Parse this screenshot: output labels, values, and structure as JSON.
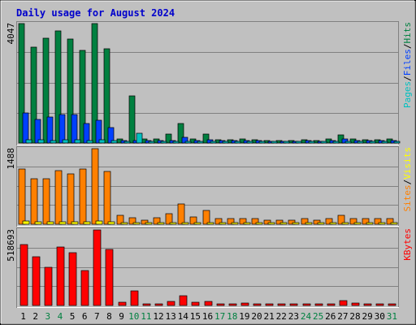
{
  "title": "Daily usage for August 2024",
  "colors": {
    "title": "#0000cc",
    "background": "#c0c0c0",
    "hits": "#008040",
    "files": "#0040ff",
    "pages": "#00c0c0",
    "visits": "#ffff00",
    "sites": "#ff8000",
    "kbytes": "#ff0000",
    "weekend_day": "#008040",
    "weekday_day": "#000000",
    "gridline": "#808080",
    "separator": "#000000"
  },
  "chart_data": {
    "type": "bar",
    "categories": [
      "1",
      "2",
      "3",
      "4",
      "5",
      "6",
      "7",
      "8",
      "9",
      "10",
      "11",
      "12",
      "13",
      "14",
      "15",
      "16",
      "17",
      "18",
      "19",
      "20",
      "21",
      "22",
      "23",
      "24",
      "25",
      "26",
      "27",
      "28",
      "29",
      "30",
      "31"
    ],
    "weekend_days": [
      "3",
      "4",
      "10",
      "11",
      "17",
      "18",
      "24",
      "25",
      "31"
    ],
    "grid": true,
    "panels": [
      {
        "id": "hits-panel",
        "max_label": "4047",
        "ylim": [
          0,
          4047
        ],
        "legend": [
          {
            "text": "Pages",
            "color_key": "pages"
          },
          {
            "text": "/",
            "color_key": "separator"
          },
          {
            "text": "Files",
            "color_key": "files"
          },
          {
            "text": "/",
            "color_key": "separator"
          },
          {
            "text": "Hits",
            "color_key": "hits"
          }
        ],
        "series": [
          {
            "name": "Hits",
            "color_key": "hits",
            "values": [
              4040,
              3240,
              3560,
              3800,
              3520,
              3140,
              4047,
              3200,
              150,
              1600,
              130,
              130,
              300,
              670,
              130,
              300,
              110,
              110,
              130,
              110,
              80,
              80,
              80,
              110,
              80,
              130,
              280,
              130,
              110,
              110,
              130
            ]
          },
          {
            "name": "Files",
            "color_key": "files",
            "values": [
              1010,
              810,
              880,
              950,
              960,
              660,
              770,
              520,
              80,
              80,
              80,
              80,
              80,
              200,
              80,
              110,
              80,
              80,
              80,
              80,
              50,
              50,
              50,
              80,
              50,
              80,
              150,
              80,
              80,
              80,
              80
            ]
          },
          {
            "name": "Pages",
            "color_key": "pages",
            "values": [
              120,
              100,
              90,
              110,
              110,
              80,
              110,
              80,
              30,
              320,
              20,
              20,
              30,
              30,
              20,
              30,
              20,
              20,
              20,
              20,
              20,
              20,
              20,
              20,
              20,
              20,
              30,
              20,
              20,
              20,
              20
            ]
          }
        ]
      },
      {
        "id": "sites-panel",
        "max_label": "1488",
        "ylim": [
          0,
          1488
        ],
        "legend": [
          {
            "text": "Sites",
            "color_key": "sites"
          },
          {
            "text": "/",
            "color_key": "separator"
          },
          {
            "text": "Visits",
            "color_key": "visits"
          }
        ],
        "series": [
          {
            "name": "Sites",
            "color_key": "sites",
            "values": [
              1090,
              900,
              890,
              1050,
              1000,
              1080,
              1488,
              1040,
              170,
              120,
              80,
              120,
              210,
              400,
              150,
              270,
              110,
              110,
              110,
              110,
              80,
              80,
              80,
              110,
              80,
              110,
              170,
              110,
              110,
              110,
              110
            ]
          },
          {
            "name": "Visits",
            "color_key": "visits",
            "values": [
              60,
              50,
              45,
              55,
              55,
              45,
              65,
              50,
              15,
              15,
              10,
              10,
              15,
              20,
              10,
              15,
              10,
              10,
              10,
              10,
              8,
              8,
              8,
              10,
              8,
              10,
              15,
              10,
              10,
              10,
              10
            ]
          }
        ]
      },
      {
        "id": "kbytes-panel",
        "max_label": "518693",
        "ylim": [
          0,
          518693
        ],
        "legend": [
          {
            "text": "KBytes",
            "color_key": "kbytes"
          }
        ],
        "series": [
          {
            "name": "KBytes",
            "color_key": "kbytes",
            "values": [
              420000,
              336000,
              262000,
              403000,
              365000,
              241000,
              518693,
              384000,
              25000,
              98000,
              8000,
              10000,
              30000,
              66000,
              20000,
              30000,
              12000,
              12000,
              15000,
              10000,
              8000,
              8000,
              8000,
              10000,
              8000,
              10000,
              35000,
              15000,
              8000,
              10000,
              12000
            ]
          }
        ]
      }
    ]
  }
}
